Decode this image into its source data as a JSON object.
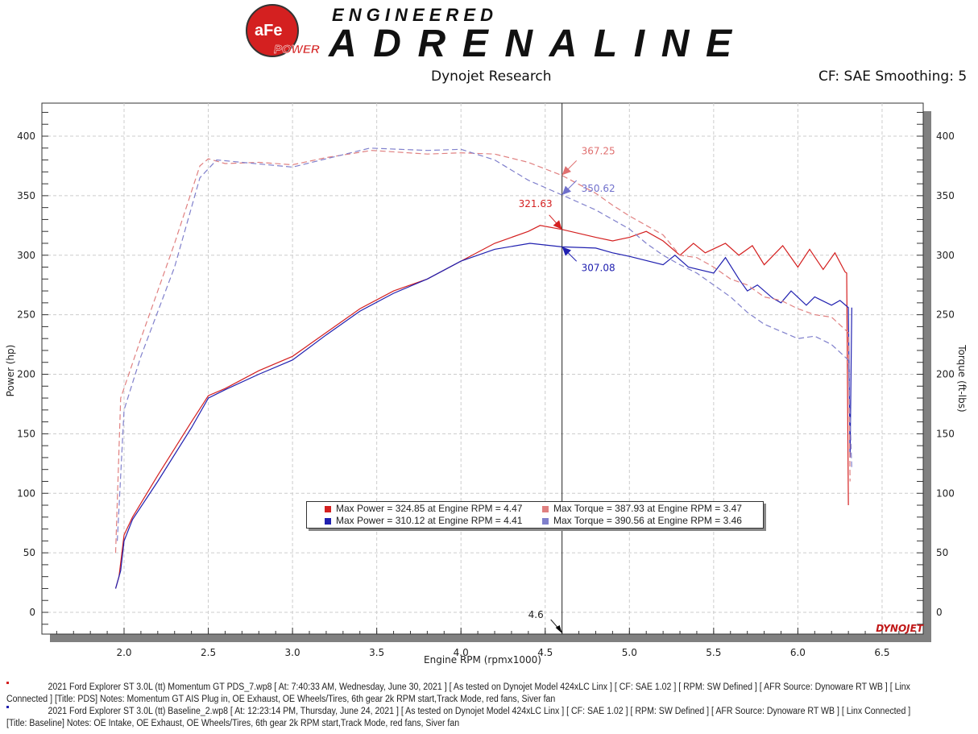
{
  "header": {
    "logo_brand": "aFe POWER",
    "logo_line1": "ENGINEERED",
    "logo_line2": "ADRENALINE",
    "subtitle": "Dynojet Research",
    "cf": "CF: SAE Smoothing: 5"
  },
  "colors": {
    "pds": "#d42020",
    "baseline": "#2020b0",
    "pds_torque": "#e08080",
    "baseline_torque": "#8080cc"
  },
  "chart_data": {
    "type": "line",
    "xlabel": "Engine RPM (rpmx1000)",
    "ylabel": "Power (hp)",
    "y2label": "Torque (ft-lbs)",
    "xlim": [
      1.5,
      6.75
    ],
    "ylim": [
      -18,
      428
    ],
    "xticks": [
      "2.0",
      "2.5",
      "3.0",
      "3.5",
      "4.0",
      "4.5",
      "5.0",
      "5.5",
      "6.0",
      "6.5"
    ],
    "yticks": [
      "0",
      "50",
      "100",
      "150",
      "200",
      "250",
      "300",
      "350",
      "400"
    ],
    "grid": true,
    "cursor": {
      "x": 4.6,
      "label": "4.6"
    },
    "watermark": "DYNOJET",
    "annotations": [
      {
        "text": "367.25",
        "x": 4.6,
        "y": 367.25,
        "color": "#e07070"
      },
      {
        "text": "350.62",
        "x": 4.6,
        "y": 350.62,
        "color": "#7070cc"
      },
      {
        "text": "321.63",
        "x": 4.6,
        "y": 321.63,
        "color": "#d42020"
      },
      {
        "text": "307.08",
        "x": 4.6,
        "y": 307.08,
        "color": "#2020b0"
      }
    ],
    "series": [
      {
        "key": "pds_power",
        "dash": false,
        "color": "#d42020",
        "x": [
          1.95,
          1.97,
          2.0,
          2.05,
          2.2,
          2.4,
          2.5,
          2.6,
          2.8,
          3.0,
          3.2,
          3.4,
          3.6,
          3.8,
          4.0,
          4.2,
          4.4,
          4.47,
          4.6,
          4.8,
          4.9,
          5.0,
          5.1,
          5.2,
          5.3,
          5.38,
          5.45,
          5.57,
          5.65,
          5.73,
          5.8,
          5.91,
          6.0,
          6.07,
          6.15,
          6.22,
          6.28,
          6.29,
          6.3
        ],
        "y": [
          20,
          30,
          65,
          80,
          115,
          160,
          182,
          188,
          203,
          215,
          235,
          255,
          270,
          280,
          295,
          310,
          320,
          325,
          321.6,
          315,
          312,
          315,
          320,
          312,
          300,
          310,
          302,
          310,
          300,
          308,
          292,
          308,
          290,
          305,
          288,
          302,
          286,
          285,
          90
        ]
      },
      {
        "key": "baseline_power",
        "dash": false,
        "color": "#2020b0",
        "x": [
          1.95,
          1.98,
          2.0,
          2.05,
          2.2,
          2.4,
          2.5,
          2.6,
          2.8,
          3.0,
          3.2,
          3.4,
          3.6,
          3.8,
          4.0,
          4.2,
          4.41,
          4.6,
          4.8,
          4.9,
          5.0,
          5.2,
          5.27,
          5.35,
          5.5,
          5.57,
          5.65,
          5.7,
          5.76,
          5.85,
          5.9,
          5.96,
          6.05,
          6.1,
          6.2,
          6.25,
          6.3,
          6.31,
          6.32
        ],
        "y": [
          20,
          35,
          60,
          78,
          110,
          155,
          180,
          187,
          200,
          212,
          233,
          253,
          268,
          280,
          295,
          305,
          310,
          307,
          306,
          302,
          299,
          292,
          300,
          290,
          285,
          298,
          280,
          270,
          275,
          264,
          260,
          270,
          258,
          265,
          258,
          262,
          256,
          130,
          256
        ]
      },
      {
        "key": "pds_torque",
        "dash": true,
        "color": "#e08080",
        "x": [
          1.95,
          1.98,
          2.1,
          2.3,
          2.45,
          2.5,
          2.6,
          2.8,
          3.0,
          3.2,
          3.47,
          3.8,
          4.0,
          4.2,
          4.4,
          4.6,
          4.8,
          4.9,
          5.0,
          5.1,
          5.2,
          5.3,
          5.4,
          5.5,
          5.6,
          5.7,
          5.8,
          5.9,
          6.0,
          6.1,
          6.2,
          6.3,
          6.31
        ],
        "y": [
          50,
          180,
          230,
          310,
          375,
          381,
          377,
          378,
          376,
          382,
          388,
          385,
          386,
          385,
          378,
          367,
          352,
          342,
          333,
          325,
          317,
          300,
          298,
          290,
          280,
          275,
          265,
          262,
          255,
          250,
          248,
          235,
          110
        ]
      },
      {
        "key": "baseline_torque",
        "dash": true,
        "color": "#8080cc",
        "x": [
          1.96,
          2.0,
          2.1,
          2.3,
          2.45,
          2.55,
          2.7,
          3.0,
          3.2,
          3.46,
          3.8,
          4.0,
          4.2,
          4.4,
          4.6,
          4.8,
          5.0,
          5.1,
          5.2,
          5.3,
          5.4,
          5.5,
          5.6,
          5.7,
          5.8,
          5.9,
          6.0,
          6.1,
          6.2,
          6.3,
          6.32
        ],
        "y": [
          60,
          170,
          215,
          290,
          365,
          380,
          378,
          374,
          381,
          390,
          388,
          389,
          380,
          363,
          350.6,
          338,
          322,
          310,
          300,
          292,
          285,
          275,
          265,
          252,
          242,
          236,
          230,
          232,
          225,
          212,
          120
        ]
      }
    ],
    "legend": [
      {
        "text": "Max Power = 324.85 at Engine RPM = 4.47",
        "color": "#d42020"
      },
      {
        "text": "Max Torque = 387.93 at Engine RPM = 3.47",
        "color": "#e08080"
      },
      {
        "text": "Max Power = 310.12 at Engine RPM = 4.41",
        "color": "#2020b0"
      },
      {
        "text": "Max Torque = 390.56 at Engine RPM = 3.46",
        "color": "#8080cc"
      }
    ]
  },
  "notes": [
    {
      "line1": "2021 Ford Explorer ST 3.0L (tt) Momentum GT PDS_7.wp8 [ At: 7:40:33 AM, Wednesday, June 30, 2021 ] [ As tested on Dynojet Model 424xLC Linx ] [ CF: SAE 1.02 ] [ RPM: SW Defined ] [ AFR Source: Dynoware RT WB ] [ Linx",
      "line2": "Connected ] [Title: PDS]  Notes: Momentum GT AIS Plug in, OE Exhaust, OE Wheels/Tires, 6th gear 2k RPM start,Track Mode, red fans, Siver fan"
    },
    {
      "line1": "2021 Ford Explorer ST 3.0L (tt) Baseline_2.wp8 [ At: 12:23:14 PM, Thursday, June 24, 2021 ] [ As tested on Dynojet Model 424xLC Linx ] [ CF: SAE 1.02 ] [ RPM: SW Defined ] [ AFR Source: Dynoware RT WB ] [ Linx Connected ]",
      "line2": "[Title: Baseline]  Notes: OE Intake, OE Exhaust, OE Wheels/Tires, 6th gear 2k RPM start,Track Mode, red fans, Siver fan"
    }
  ]
}
